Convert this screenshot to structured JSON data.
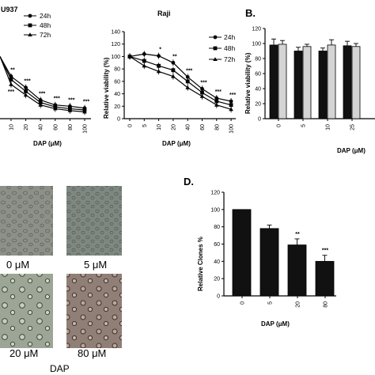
{
  "panel_labels": {
    "b": "B.",
    "d": "D."
  },
  "micrographs": {
    "group_label": "DAP",
    "panels": [
      {
        "label": "0 μM",
        "tint": "#8d9088"
      },
      {
        "label": "5 μM",
        "tint": "#7f8880"
      },
      {
        "label": "20 μM",
        "tint": "#9da596"
      },
      {
        "label": "80 μM",
        "tint": "#8f7f76"
      }
    ]
  },
  "chart_data": [
    {
      "id": "u937",
      "type": "line",
      "title": "U937",
      "xlabel": "DAP (μM)",
      "ylabel": "",
      "categories": [
        "10",
        "20",
        "40",
        "60",
        "80",
        "100"
      ],
      "ylim": [
        0,
        140
      ],
      "series": [
        {
          "name": "24h",
          "marker": "circle",
          "values": [
            68,
            50,
            30,
            22,
            20,
            17
          ]
        },
        {
          "name": "48h",
          "marker": "square",
          "values": [
            63,
            44,
            26,
            19,
            16,
            14
          ]
        },
        {
          "name": "72h",
          "marker": "triangle",
          "values": [
            55,
            38,
            22,
            16,
            13,
            11
          ]
        }
      ],
      "annotations": [
        {
          "index": 0,
          "text": "**",
          "series": "24h"
        },
        {
          "index": 1,
          "text": "***",
          "series": "24h"
        },
        {
          "index": 0,
          "text": "***",
          "series": "72h"
        },
        {
          "index": 2,
          "text": "***",
          "series": "24h"
        },
        {
          "index": 3,
          "text": "***",
          "series": "24h"
        },
        {
          "index": 4,
          "text": "***",
          "series": "24h"
        },
        {
          "index": 5,
          "text": "***",
          "series": "24h"
        }
      ]
    },
    {
      "id": "raji",
      "type": "line",
      "title": "Raji",
      "xlabel": "DAP (μM)",
      "ylabel": "Relative viability (%)",
      "categories": [
        "0",
        "5",
        "10",
        "20",
        "40",
        "60",
        "80",
        "100"
      ],
      "ylim": [
        0,
        140
      ],
      "yticks": [
        0,
        20,
        40,
        60,
        80,
        100,
        120,
        140
      ],
      "series": [
        {
          "name": "24h",
          "marker": "circle",
          "values": [
            100,
            104,
            101,
            90,
            67,
            48,
            33,
            28
          ]
        },
        {
          "name": "48h",
          "marker": "square",
          "values": [
            100,
            93,
            85,
            78,
            60,
            42,
            28,
            22
          ]
        },
        {
          "name": "72h",
          "marker": "triangle",
          "values": [
            100,
            85,
            76,
            68,
            50,
            36,
            22,
            15
          ]
        }
      ],
      "annotations": [
        {
          "index": 2,
          "text": "*",
          "series": "24h"
        },
        {
          "index": 3,
          "text": "**",
          "series": "24h"
        },
        {
          "index": 4,
          "text": "***",
          "series": "24h"
        },
        {
          "index": 5,
          "text": "***",
          "series": "24h"
        },
        {
          "index": 6,
          "text": "***",
          "series": "24h"
        },
        {
          "index": 7,
          "text": "***",
          "series": "24h"
        }
      ]
    },
    {
      "id": "b",
      "type": "bar",
      "title": "",
      "xlabel": "DAP (μM)",
      "ylabel": "Relative viability (%)",
      "categories": [
        "0",
        "5",
        "10",
        "25"
      ],
      "ylim": [
        0,
        120
      ],
      "yticks": [
        0,
        20,
        40,
        60,
        80,
        100,
        120
      ],
      "series": [
        {
          "name": "",
          "color": "#111111",
          "values": [
            98,
            90,
            90,
            97
          ],
          "errors": [
            8,
            5,
            4,
            6
          ]
        },
        {
          "name": "",
          "color": "#d4d4d4",
          "values": [
            99,
            96,
            98,
            96
          ],
          "errors": [
            5,
            3,
            7,
            4
          ]
        }
      ]
    },
    {
      "id": "d",
      "type": "bar",
      "title": "",
      "xlabel": "DAP (μM)",
      "ylabel": "Relative Clones  %",
      "categories": [
        "0",
        "5",
        "20",
        "80"
      ],
      "ylim": [
        0,
        120
      ],
      "yticks": [
        0,
        20,
        40,
        60,
        80,
        100,
        120
      ],
      "series": [
        {
          "name": "",
          "color": "#111111",
          "values": [
            100,
            78,
            59,
            40
          ],
          "errors": [
            0,
            4,
            7,
            7
          ]
        }
      ],
      "annotations": [
        {
          "index": 2,
          "text": "**"
        },
        {
          "index": 3,
          "text": "***"
        }
      ]
    }
  ]
}
